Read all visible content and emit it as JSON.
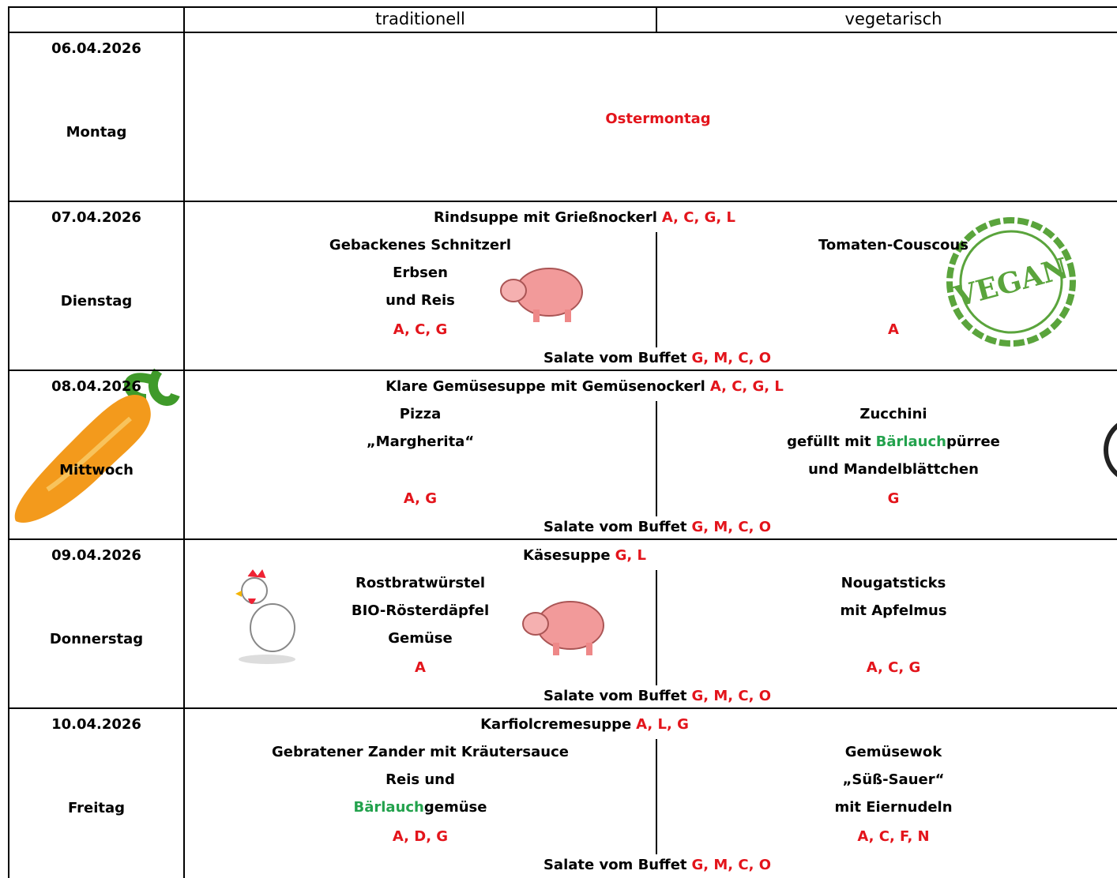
{
  "header": {
    "col1": "traditionell",
    "col2": "vegetarisch"
  },
  "days": [
    {
      "date": "06.04.2026",
      "weekday": "Montag",
      "holiday": "Ostermontag"
    },
    {
      "date": "07.04.2026",
      "weekday": "Dienstag",
      "soup": {
        "name": "Rindsuppe mit Grießnockerl",
        "allergens": "A, C, G, L"
      },
      "traditional": {
        "lines": [
          "Gebackenes Schnitzerl",
          "Erbsen",
          "und Reis"
        ],
        "allergens": "A, C, G"
      },
      "vegetarian": {
        "lines": [
          "Tomaten-Couscous"
        ],
        "allergens": "A"
      },
      "salad": {
        "name": "Salate vom Buffet",
        "allergens": "G, M, C, O"
      }
    },
    {
      "date": "08.04.2026",
      "weekday": "Mittwoch",
      "soup": {
        "name": "Klare Gemüsesuppe mit Gemüsenockerl",
        "allergens": "A, C, G, L"
      },
      "traditional": {
        "lines": [
          "Pizza",
          "„Margherita“"
        ],
        "allergens": "A, G"
      },
      "vegetarian": {
        "lines": [
          "Zucchini",
          {
            "parts": [
              {
                "text": "gefüllt mit"
              },
              {
                "text": "Bärlauch",
                "color": "#23a24d"
              },
              {
                "text": "pürree"
              }
            ]
          },
          "und Mandelblättchen"
        ],
        "allergens": "G"
      },
      "salad": {
        "name": "Salate vom Buffet",
        "allergens": "G, M, C, O"
      }
    },
    {
      "date": "09.04.2026",
      "weekday": "Donnerstag",
      "soup": {
        "name": "Käsesuppe",
        "allergens": "G, L"
      },
      "traditional": {
        "lines": [
          "Rostbratwürstel",
          "BIO-Rösterdäpfel",
          "Gemüse"
        ],
        "allergens": "A"
      },
      "vegetarian": {
        "lines": [
          "Nougatsticks",
          "mit Apfelmus"
        ],
        "allergens": "A, C, G"
      },
      "salad": {
        "name": "Salate vom Buffet",
        "allergens": "G, M, C, O"
      }
    },
    {
      "date": "10.04.2026",
      "weekday": "Freitag",
      "soup": {
        "name": "Karfiolcremesuppe",
        "allergens": "A, L, G"
      },
      "traditional": {
        "lines": [
          "Gebratener Zander mit Kräutersauce",
          "Reis und",
          {
            "parts": [
              {
                "text": "Bärlauch",
                "color": "#23a24d"
              },
              {
                "text": "gemüse"
              }
            ]
          }
        ],
        "allergens": "A, D, G"
      },
      "vegetarian": {
        "lines": [
          "Gemüsewok",
          "„Süß-Sauer“",
          "mit Eiernudeln"
        ],
        "allergens": "A, C, F, N"
      },
      "salad": {
        "name": "Salate vom Buffet",
        "allergens": "G, M, C, O"
      }
    }
  ],
  "stamp": "VEGAN"
}
